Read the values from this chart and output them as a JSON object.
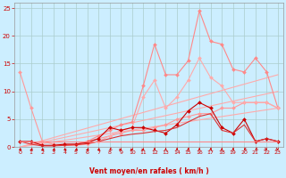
{
  "xlabel": "Vent moyen/en rafales ( km/h )",
  "background_color": "#cceeff",
  "grid_color": "#aacccc",
  "xlim": [
    -0.5,
    23.5
  ],
  "ylim": [
    0,
    26
  ],
  "yticks": [
    0,
    5,
    10,
    15,
    20,
    25
  ],
  "xticks": [
    0,
    1,
    2,
    3,
    4,
    5,
    6,
    7,
    8,
    9,
    10,
    11,
    12,
    13,
    14,
    15,
    16,
    17,
    18,
    19,
    20,
    21,
    22,
    23
  ],
  "series": [
    {
      "x": [
        0,
        23
      ],
      "y": [
        0,
        7
      ],
      "color": "#ffaaaa",
      "lw": 0.8,
      "marker": null
    },
    {
      "x": [
        0,
        23
      ],
      "y": [
        0,
        13
      ],
      "color": "#ffaaaa",
      "lw": 0.8,
      "marker": null
    },
    {
      "x": [
        0,
        23
      ],
      "y": [
        0,
        10
      ],
      "color": "#ffaaaa",
      "lw": 0.8,
      "marker": null
    },
    {
      "x": [
        0,
        1,
        2,
        3,
        4,
        5,
        6,
        7,
        8,
        9,
        10,
        11,
        12,
        13,
        14,
        15,
        16,
        17,
        18,
        19,
        20,
        21,
        22,
        23
      ],
      "y": [
        13.5,
        7,
        1,
        0.5,
        0.5,
        0.5,
        1,
        1.5,
        2,
        2.5,
        3,
        3,
        3.5,
        4,
        5,
        5.5,
        6,
        6,
        7,
        7,
        8,
        8,
        8,
        7
      ],
      "color": "#ff9999",
      "lw": 0.8,
      "marker": "D",
      "ms": 2
    },
    {
      "x": [
        4,
        5,
        6,
        7,
        8,
        9,
        10,
        11,
        12,
        13,
        14,
        15,
        16,
        17,
        18,
        19,
        20,
        21,
        22,
        23
      ],
      "y": [
        0.5,
        0.5,
        1,
        2,
        3,
        4,
        4.5,
        11,
        18.5,
        13,
        13,
        15.5,
        24.5,
        19,
        18.5,
        14,
        13.5,
        16,
        13.5,
        7
      ],
      "color": "#ff8888",
      "lw": 0.8,
      "marker": "D",
      "ms": 2
    },
    {
      "x": [
        4,
        5,
        6,
        7,
        8,
        9,
        10,
        11,
        12,
        13,
        14,
        15,
        16,
        17,
        18,
        19,
        20,
        21,
        22,
        23
      ],
      "y": [
        0.3,
        0.3,
        0.5,
        1,
        2,
        3,
        3.5,
        9,
        12,
        7,
        9,
        12,
        16,
        12.5,
        11,
        8,
        8,
        8,
        8,
        7
      ],
      "color": "#ffaaaa",
      "lw": 0.8,
      "marker": "D",
      "ms": 2
    },
    {
      "x": [
        0,
        1,
        2,
        3,
        4,
        5,
        6,
        7,
        8,
        9,
        10,
        11,
        12,
        13,
        14,
        15,
        16,
        17,
        18,
        19,
        20,
        21,
        22,
        23
      ],
      "y": [
        1,
        1,
        0.3,
        0.3,
        0.5,
        0.5,
        0.8,
        1.5,
        3.5,
        3,
        3.5,
        3.5,
        3,
        2.5,
        4,
        6.5,
        8,
        7,
        3.5,
        2.5,
        5,
        1,
        1.5,
        1
      ],
      "color": "#cc0000",
      "lw": 0.8,
      "marker": "D",
      "ms": 2
    },
    {
      "x": [
        0,
        1,
        2,
        3,
        4,
        5,
        6,
        7,
        8,
        9,
        10,
        11,
        12,
        13,
        14,
        15,
        16,
        17,
        18,
        19,
        20,
        21,
        22,
        23
      ],
      "y": [
        1,
        0.5,
        0.2,
        0.2,
        0.3,
        0.4,
        0.6,
        1,
        1.5,
        2,
        2.3,
        2.5,
        2.8,
        3,
        3.5,
        4.5,
        5.5,
        6,
        3,
        2.5,
        4,
        1,
        1.5,
        1
      ],
      "color": "#dd3333",
      "lw": 0.8,
      "marker": null
    },
    {
      "x": [
        0,
        23
      ],
      "y": [
        1,
        1
      ],
      "color": "#ff8888",
      "lw": 0.8,
      "marker": null
    }
  ],
  "wind_arrows_x": [
    0,
    1,
    2,
    3,
    4,
    5,
    6,
    7,
    8,
    9,
    10,
    11,
    12,
    13,
    14,
    15,
    16,
    17,
    18,
    19,
    20,
    21,
    22,
    23
  ],
  "wind_dirs": [
    270,
    270,
    270,
    270,
    270,
    270,
    270,
    270,
    315,
    90,
    90,
    90,
    180,
    180,
    180,
    180,
    180,
    180,
    180,
    180,
    315,
    315,
    45,
    45
  ]
}
